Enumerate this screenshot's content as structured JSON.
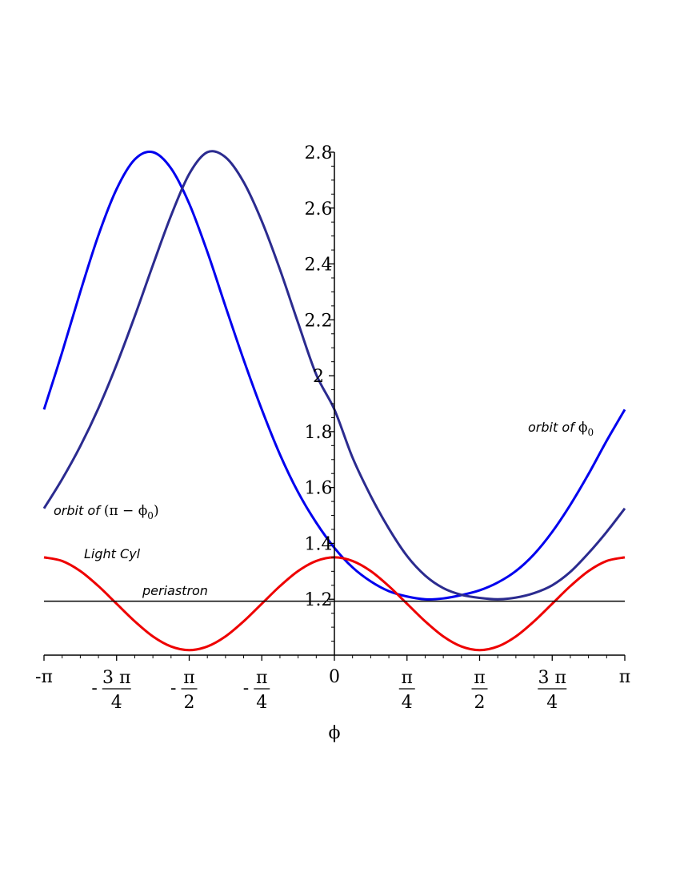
{
  "chart_data": {
    "type": "line",
    "xlabel": "ϕ",
    "ylabel": "",
    "xlim": [
      -3.14159,
      3.14159
    ],
    "ylim": [
      1.0,
      2.8
    ],
    "grid": false,
    "x_ticks": [
      {
        "value": -3.14159,
        "label": "-π"
      },
      {
        "value": -2.35619,
        "sign": "-",
        "num": "3 π",
        "den": "4"
      },
      {
        "value": -1.5708,
        "sign": "-",
        "num": "π",
        "den": "2"
      },
      {
        "value": -0.7854,
        "sign": "-",
        "num": "π",
        "den": "4"
      },
      {
        "value": 0,
        "label": "0"
      },
      {
        "value": 0.7854,
        "sign": "",
        "num": "π",
        "den": "4"
      },
      {
        "value": 1.5708,
        "sign": "",
        "num": "π",
        "den": "2"
      },
      {
        "value": 2.35619,
        "sign": "",
        "num": "3 π",
        "den": "4"
      },
      {
        "value": 3.14159,
        "label": "π"
      }
    ],
    "y_ticks": [
      {
        "value": 1.2,
        "label": "1.2"
      },
      {
        "value": 1.4,
        "label": "1.4"
      },
      {
        "value": 1.6,
        "label": "1.6"
      },
      {
        "value": 1.8,
        "label": "1.8"
      },
      {
        "value": 2.0,
        "label": "2"
      },
      {
        "value": 2.2,
        "label": "2.2"
      },
      {
        "value": 2.4,
        "label": "2.4"
      },
      {
        "value": 2.6,
        "label": "2.6"
      },
      {
        "value": 2.8,
        "label": "2.8"
      }
    ],
    "series": [
      {
        "name": "orbit of ϕ0",
        "color": "#0000ee",
        "x": [
          -3.1416,
          -2.9452,
          -2.7489,
          -2.5525,
          -2.3562,
          -2.1598,
          -1.9635,
          -1.7671,
          -1.5708,
          -1.3744,
          -1.1781,
          -0.9817,
          -0.7854,
          -0.589,
          -0.3927,
          -0.1963,
          0,
          0.1963,
          0.3927,
          0.589,
          0.7854,
          0.9817,
          1.1781,
          1.3744,
          1.5708,
          1.7671,
          1.9635,
          2.1598,
          2.3562,
          2.5525,
          2.7489,
          2.9452,
          3.1416
        ],
        "y": [
          1.879,
          2.084,
          2.3,
          2.503,
          2.668,
          2.774,
          2.8,
          2.742,
          2.616,
          2.443,
          2.248,
          2.057,
          1.879,
          1.718,
          1.583,
          1.474,
          1.384,
          1.314,
          1.264,
          1.229,
          1.21,
          1.2,
          1.203,
          1.215,
          1.232,
          1.26,
          1.301,
          1.361,
          1.441,
          1.538,
          1.648,
          1.767,
          1.879
        ]
      },
      {
        "name": "orbit of (π − ϕ0)",
        "color": "#2b2b8f",
        "x": [
          -3.1416,
          -2.9452,
          -2.7489,
          -2.5525,
          -2.3562,
          -2.1598,
          -1.9635,
          -1.7671,
          -1.5708,
          -1.3744,
          -1.1781,
          -0.9817,
          -0.7854,
          -0.589,
          -0.3927,
          -0.1963,
          0,
          0.1963,
          0.3927,
          0.589,
          0.7854,
          0.9817,
          1.1781,
          1.3744,
          1.5708,
          1.7671,
          1.9635,
          2.1598,
          2.3562,
          2.5525,
          2.7489,
          2.9452,
          3.1416
        ],
        "y": [
          1.525,
          1.63,
          1.748,
          1.884,
          2.04,
          2.213,
          2.396,
          2.573,
          2.722,
          2.8,
          2.782,
          2.693,
          2.553,
          2.38,
          2.189,
          2.004,
          1.879,
          1.707,
          1.57,
          1.453,
          1.355,
          1.285,
          1.24,
          1.216,
          1.205,
          1.2,
          1.206,
          1.222,
          1.25,
          1.298,
          1.365,
          1.441,
          1.525
        ]
      },
      {
        "name": "Light Cyl",
        "color": "#ee0000",
        "x": [
          -3.1416,
          -2.9452,
          -2.7489,
          -2.5525,
          -2.3562,
          -2.1598,
          -1.9635,
          -1.7671,
          -1.5708,
          -1.3744,
          -1.1781,
          -0.9817,
          -0.7854,
          -0.589,
          -0.3927,
          -0.1963,
          0,
          0.1963,
          0.3927,
          0.589,
          0.7854,
          0.9817,
          1.1781,
          1.3744,
          1.5708,
          1.7671,
          1.9635,
          2.1598,
          2.3562,
          2.5525,
          2.7489,
          2.9452,
          3.1416
        ],
        "y": [
          1.35,
          1.337,
          1.301,
          1.247,
          1.184,
          1.121,
          1.067,
          1.031,
          1.018,
          1.031,
          1.067,
          1.121,
          1.184,
          1.247,
          1.301,
          1.337,
          1.35,
          1.337,
          1.301,
          1.247,
          1.184,
          1.121,
          1.067,
          1.031,
          1.018,
          1.031,
          1.067,
          1.121,
          1.184,
          1.247,
          1.301,
          1.337,
          1.35
        ]
      },
      {
        "name": "periastron",
        "color": "#000000",
        "x": [
          -3.1416,
          3.1416
        ],
        "y": [
          1.193,
          1.193
        ]
      }
    ],
    "annotations": {
      "orbit_phi0": {
        "text": "orbit of ",
        "math": "ϕ",
        "sub": "0"
      },
      "orbit_pi_minus": {
        "text": "orbit of ",
        "open": "(",
        "math": "π − ϕ",
        "sub": "0",
        "close": ")"
      },
      "light_cyl": {
        "text": "Light Cyl"
      },
      "periastron": {
        "text": "periastron"
      }
    }
  }
}
